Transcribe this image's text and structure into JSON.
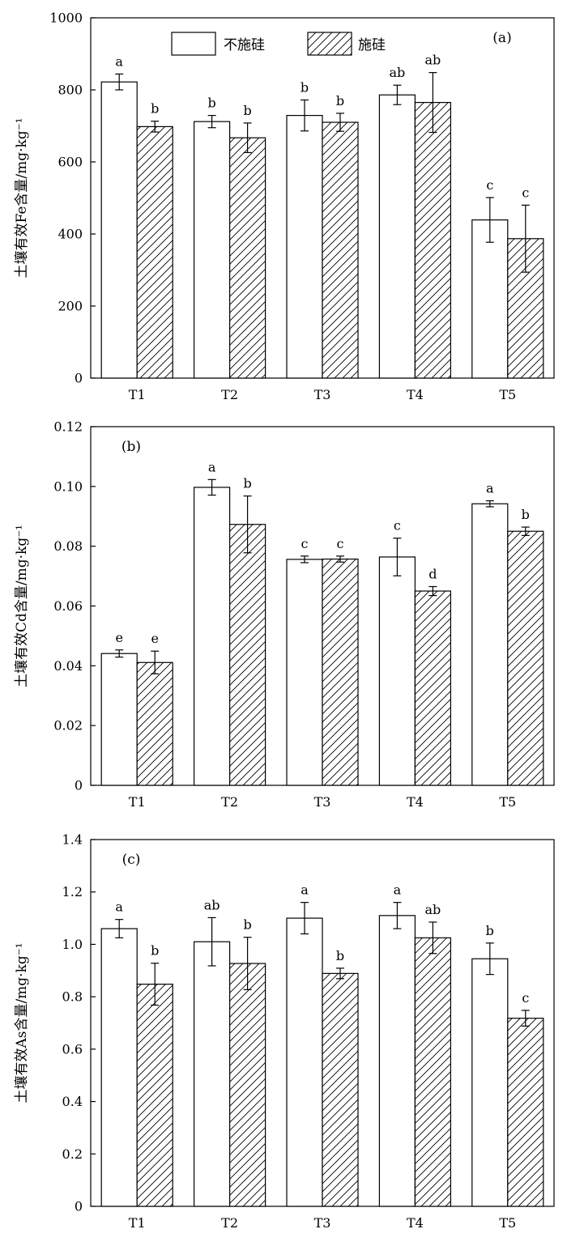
{
  "legend": [
    "不施硅",
    "施硅"
  ],
  "chart_data": [
    {
      "type": "bar",
      "panel_label": "(a)",
      "ylabel": "土壤有效Fe含量/mg·kg⁻¹",
      "categories": [
        "T1",
        "T2",
        "T3",
        "T4",
        "T5"
      ],
      "ylim": [
        0,
        1000
      ],
      "yticks": [
        "0",
        "200",
        "400",
        "600",
        "800",
        "1000"
      ],
      "legend_position": "top",
      "series": [
        {
          "name": "不施硅",
          "pattern": "open",
          "values": [
            822,
            712,
            729,
            786,
            439
          ],
          "errors": [
            22,
            17,
            43,
            27,
            62
          ],
          "letters": [
            "a",
            "b",
            "b",
            "ab",
            "c"
          ]
        },
        {
          "name": "施硅",
          "pattern": "hatched",
          "values": [
            698,
            667,
            710,
            765,
            387
          ],
          "errors": [
            15,
            41,
            25,
            83,
            93
          ],
          "letters": [
            "b",
            "b",
            "b",
            "ab",
            "c"
          ]
        }
      ]
    },
    {
      "type": "bar",
      "panel_label": "(b)",
      "ylabel": "土壤有效Cd含量/mg·kg⁻¹",
      "categories": [
        "T1",
        "T2",
        "T3",
        "T4",
        "T5"
      ],
      "ylim": [
        0,
        0.12
      ],
      "yticks": [
        "0",
        "0.02",
        "0.04",
        "0.06",
        "0.08",
        "0.10",
        "0.12"
      ],
      "series": [
        {
          "name": "不施硅",
          "pattern": "open",
          "values": [
            0.0441,
            0.0997,
            0.0756,
            0.0764,
            0.0942
          ],
          "errors": [
            0.0012,
            0.0026,
            0.0011,
            0.0063,
            0.001
          ],
          "letters": [
            "e",
            "a",
            "c",
            "c",
            "a"
          ]
        },
        {
          "name": "施硅",
          "pattern": "hatched",
          "values": [
            0.0411,
            0.0873,
            0.0757,
            0.065,
            0.085
          ],
          "errors": [
            0.0038,
            0.0095,
            0.001,
            0.0015,
            0.0014
          ],
          "letters": [
            "e",
            "b",
            "c",
            "d",
            "b"
          ]
        }
      ]
    },
    {
      "type": "bar",
      "panel_label": "(c)",
      "ylabel": "土壤有效As含量/mg·kg⁻¹",
      "categories": [
        "T1",
        "T2",
        "T3",
        "T4",
        "T5"
      ],
      "ylim": [
        0,
        1.4
      ],
      "yticks": [
        "0",
        "0.2",
        "0.4",
        "0.6",
        "0.8",
        "1.0",
        "1.2",
        "1.4"
      ],
      "series": [
        {
          "name": "不施硅",
          "pattern": "open",
          "values": [
            1.06,
            1.01,
            1.1,
            1.11,
            0.945
          ],
          "errors": [
            0.035,
            0.092,
            0.06,
            0.05,
            0.06
          ],
          "letters": [
            "a",
            "ab",
            "a",
            "a",
            "b"
          ]
        },
        {
          "name": "施硅",
          "pattern": "hatched",
          "values": [
            0.848,
            0.927,
            0.889,
            1.025,
            0.718
          ],
          "errors": [
            0.08,
            0.1,
            0.02,
            0.06,
            0.03
          ],
          "letters": [
            "b",
            "b",
            "b",
            "ab",
            "c"
          ]
        }
      ]
    }
  ]
}
